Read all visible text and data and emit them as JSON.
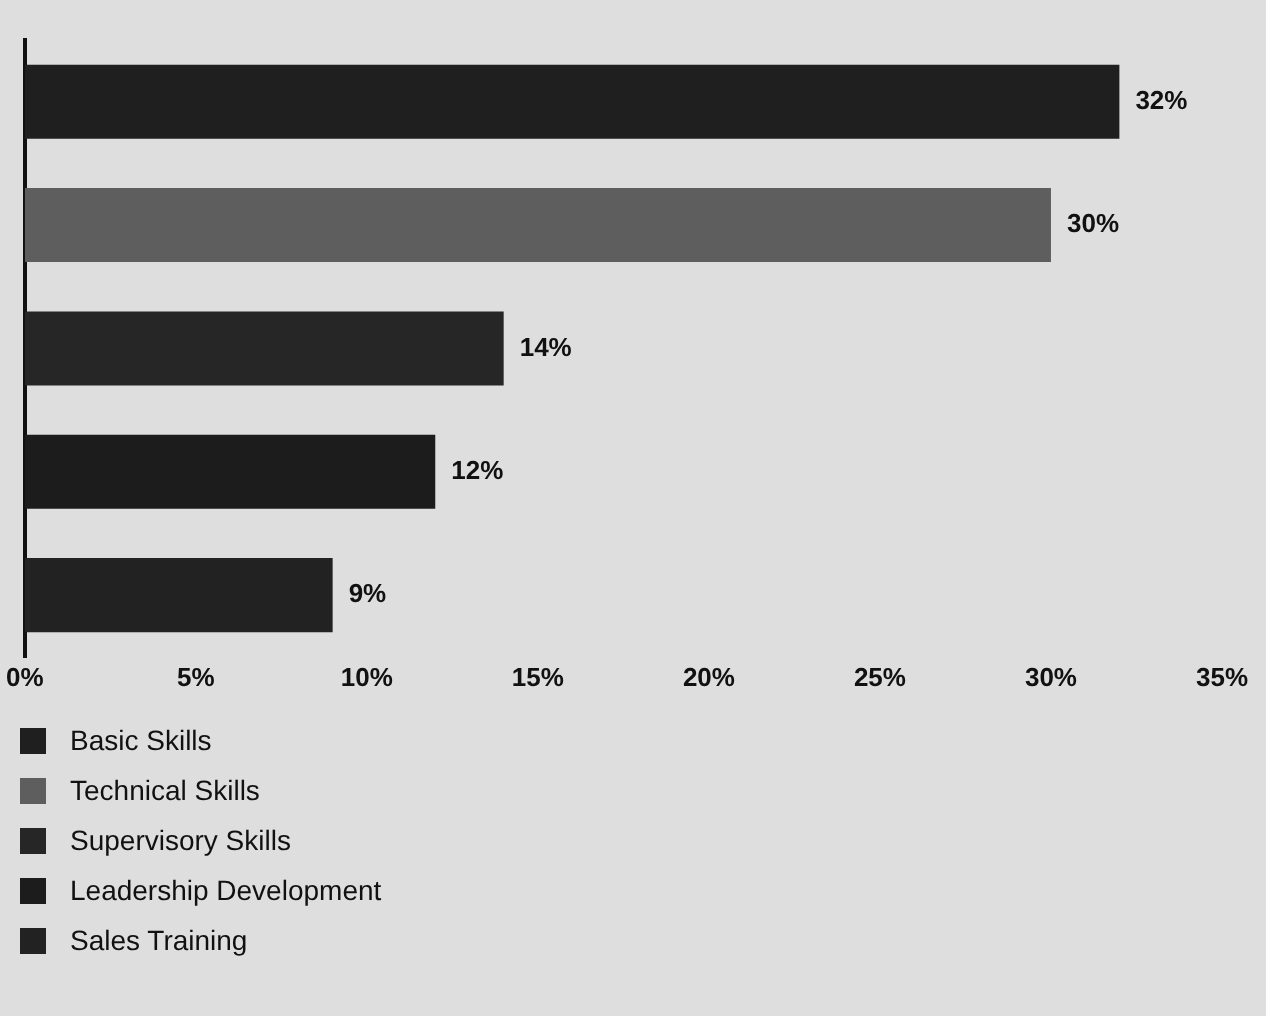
{
  "chart_data": {
    "type": "bar",
    "orientation": "horizontal",
    "categories": [
      null,
      null,
      null,
      null,
      null
    ],
    "series": [
      {
        "name": "Basic Skills",
        "color": "#1f1f1f",
        "values": [
          32,
          null,
          null,
          null,
          null
        ]
      },
      {
        "name": "Technical Skills",
        "color": "#5e5e5e",
        "values": [
          null,
          30,
          null,
          null,
          null
        ]
      },
      {
        "name": "Supervisory Skills",
        "color": "#262626",
        "values": [
          null,
          null,
          14,
          null,
          null
        ]
      },
      {
        "name": "Leadership Development",
        "color": "#1c1c1c",
        "values": [
          null,
          null,
          null,
          12,
          null
        ]
      },
      {
        "name": "Sales Training",
        "color": "#222222",
        "values": [
          null,
          null,
          null,
          null,
          9
        ]
      }
    ],
    "value_labels": [
      "32%",
      "30%",
      "14%",
      "12%",
      "9%"
    ],
    "xlim": [
      0,
      35
    ],
    "xticks": [
      {
        "value": 0,
        "label": "0%"
      },
      {
        "value": 5,
        "label": "5%"
      },
      {
        "value": 10,
        "label": "10%"
      },
      {
        "value": 15,
        "label": "15%"
      },
      {
        "value": 20,
        "label": "20%"
      },
      {
        "value": 25,
        "label": "25%"
      },
      {
        "value": 30,
        "label": "30%"
      },
      {
        "value": 35,
        "label": "35%"
      }
    ],
    "grid": false,
    "legend": "bottom"
  }
}
